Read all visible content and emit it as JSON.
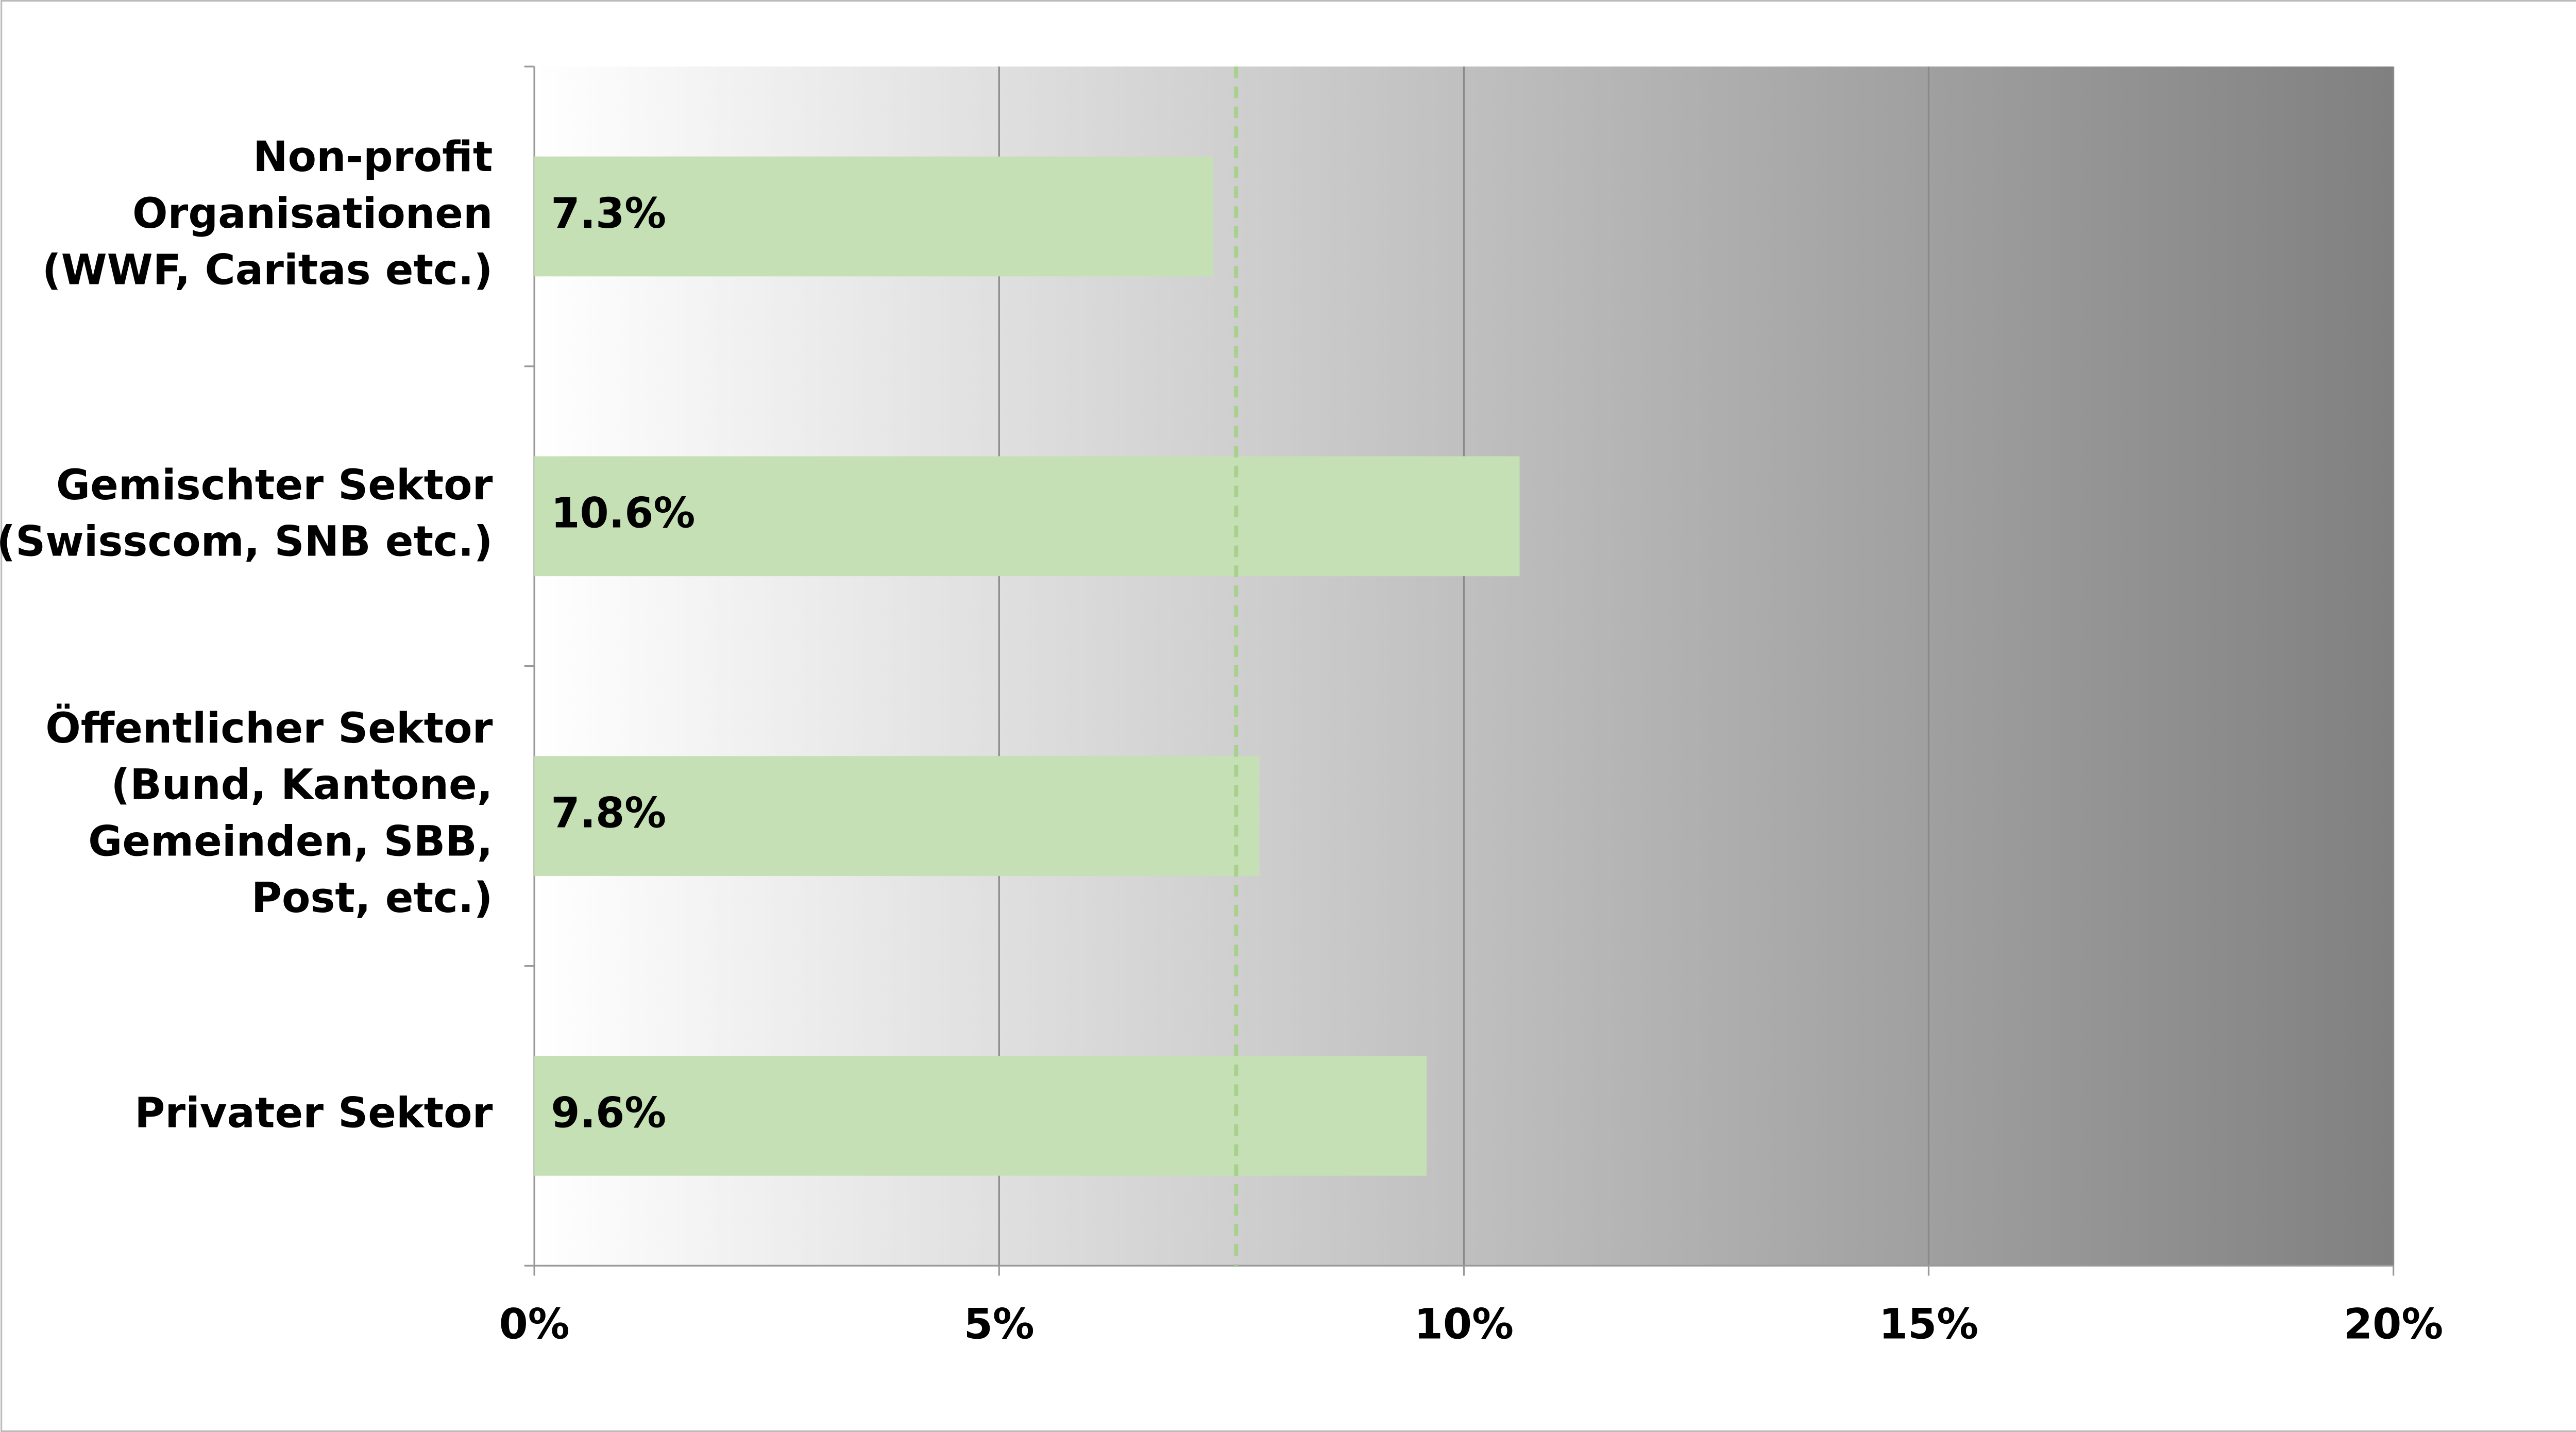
{
  "chart_data": {
    "type": "bar",
    "orientation": "horizontal",
    "categories": [
      [
        "Non-profit",
        "Organisationen",
        "(WWF, Caritas etc.)"
      ],
      [
        "Gemischter Sektor",
        "(Swisscom, SNB etc.)"
      ],
      [
        "Öffentlicher Sektor",
        "(Bund, Kantone,",
        "Gemeinden, SBB,",
        "Post, etc.)"
      ],
      [
        "Privater Sektor"
      ]
    ],
    "values": [
      7.3,
      10.6,
      7.8,
      9.6
    ],
    "value_labels": [
      "7.3%",
      "10.6%",
      "7.8%",
      "9.6%"
    ],
    "color": "#c5e0b4",
    "reference_line": {
      "value": 7.55,
      "color": "#a9d18e"
    },
    "xlim": [
      0,
      20
    ],
    "xticks": [
      {
        "value": 0,
        "label": "0%"
      },
      {
        "value": 5,
        "label": "5%"
      },
      {
        "value": 10,
        "label": "10%"
      },
      {
        "value": 15,
        "label": "15%"
      },
      {
        "value": 20,
        "label": "20%"
      }
    ],
    "grid": true
  }
}
